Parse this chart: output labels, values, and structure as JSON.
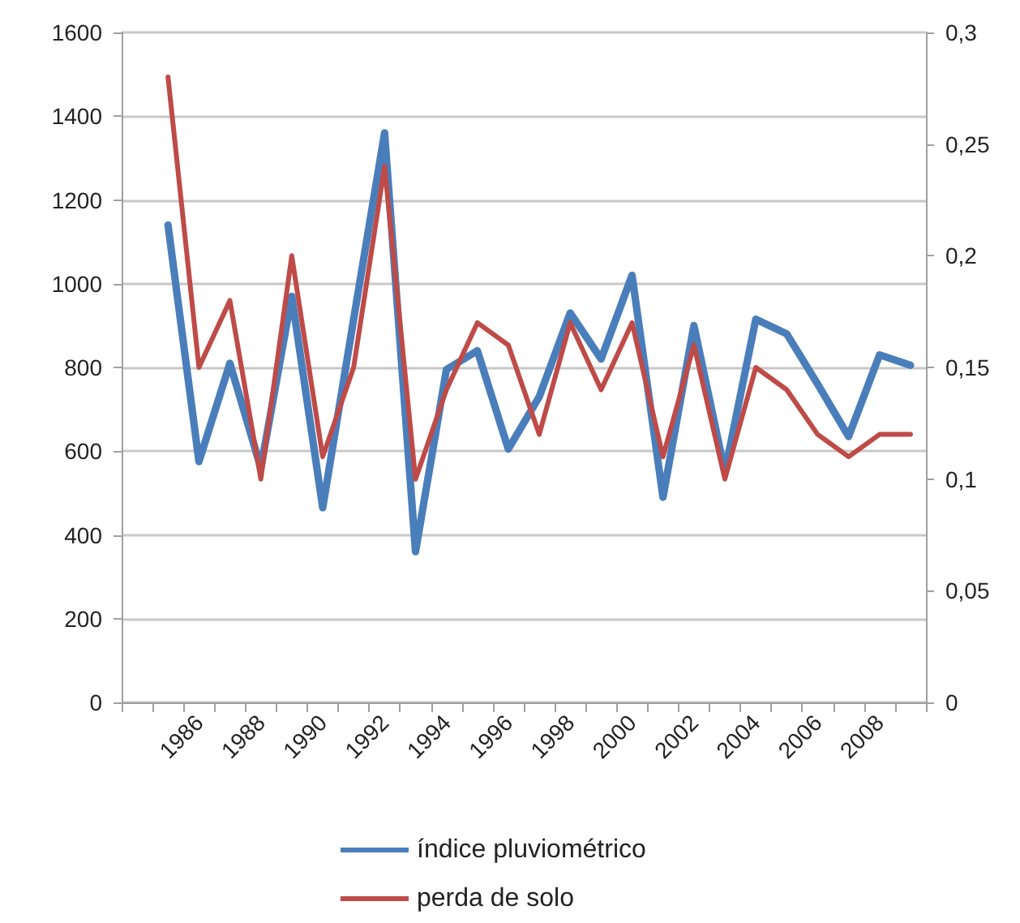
{
  "chart_data": {
    "type": "line",
    "categories": [
      null,
      null,
      "1986",
      null,
      "1988",
      null,
      "1990",
      null,
      "1992",
      null,
      "1994",
      null,
      "1996",
      null,
      "1998",
      null,
      "2000",
      null,
      "2002",
      null,
      "2004",
      null,
      "2006",
      null,
      "2008",
      null
    ],
    "series": [
      {
        "name": "índice pluviométrico",
        "color": "#4a7ebb",
        "values": [
          null,
          1140,
          575,
          810,
          560,
          970,
          465,
          915,
          1360,
          360,
          795,
          840,
          605,
          730,
          930,
          820,
          1020,
          490,
          900,
          550,
          915,
          880,
          760,
          635,
          830,
          805
        ]
      },
      {
        "name": "perda de solo",
        "color": "#be4b48",
        "axis": "y2",
        "values": [
          null,
          0.28,
          0.15,
          0.18,
          0.1,
          0.2,
          0.11,
          0.15,
          0.24,
          0.1,
          0.14,
          0.17,
          0.16,
          0.12,
          0.17,
          0.14,
          0.17,
          0.11,
          0.16,
          0.1,
          0.15,
          0.14,
          0.12,
          0.11,
          0.12,
          0.12
        ]
      }
    ],
    "ylim": [
      0,
      1600
    ],
    "yticks": [
      0,
      200,
      400,
      600,
      800,
      1000,
      1200,
      1400,
      1600
    ],
    "y2lim": [
      0,
      0.3
    ],
    "y2ticks": [
      0,
      {
        "value": 0.05,
        "label": "0,05"
      },
      {
        "value": 0.1,
        "label": "0,1"
      },
      {
        "value": 0.15,
        "label": "0,15"
      },
      {
        "value": 0.2,
        "label": "0,2"
      },
      {
        "value": 0.25,
        "label": "0,25"
      },
      {
        "value": 0.3,
        "label": "0,3"
      }
    ],
    "grid": "y",
    "legend": "bottom",
    "marker": "none",
    "line_style": "solid"
  }
}
